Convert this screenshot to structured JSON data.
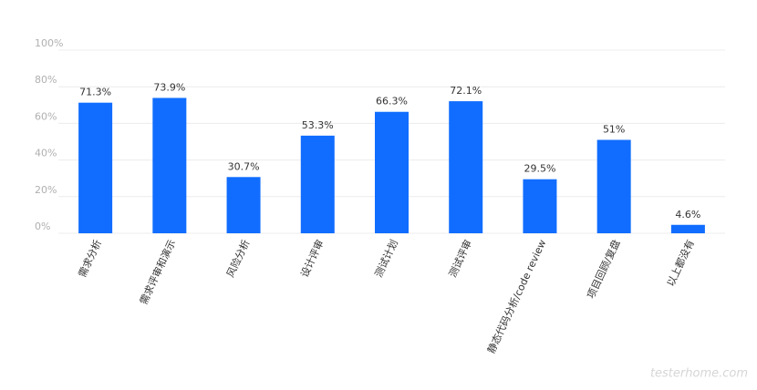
{
  "chart_data": {
    "type": "bar",
    "categories": [
      "需求分析",
      "需求评审和演示",
      "风险分析",
      "设计评审",
      "测试计划",
      "测试评审",
      "静态代码分析/code review",
      "项目回顾/复盘",
      "以上都没有"
    ],
    "values": [
      71.3,
      73.9,
      30.7,
      53.3,
      66.3,
      72.1,
      29.5,
      51,
      4.6
    ],
    "value_labels": [
      "71.3%",
      "73.9%",
      "30.7%",
      "53.3%",
      "66.3%",
      "72.1%",
      "29.5%",
      "51%",
      "4.6%"
    ],
    "color": "#116dff",
    "ylim": [
      0,
      100
    ],
    "yticks": [
      {
        "value": 0,
        "label": "0%"
      },
      {
        "value": 20,
        "label": "20%"
      },
      {
        "value": 40,
        "label": "40%"
      },
      {
        "value": 60,
        "label": "60%"
      },
      {
        "value": 80,
        "label": "80%"
      },
      {
        "value": 100,
        "label": "100%"
      }
    ],
    "grid": true
  },
  "watermark": "testerhome.com"
}
